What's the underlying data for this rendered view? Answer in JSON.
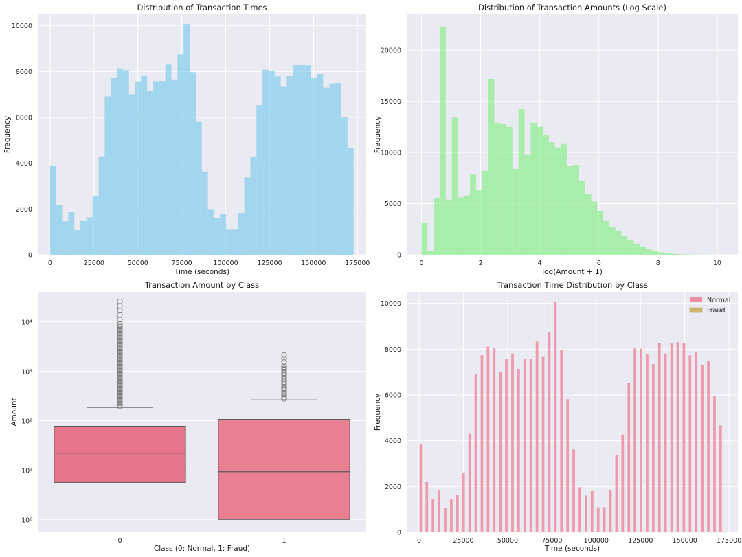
{
  "chart_data": [
    {
      "type": "bar",
      "title": "Distribution of Transaction Times",
      "xlabel": "Time (seconds)",
      "ylabel": "Frequency",
      "xlim": [
        -7000,
        180000
      ],
      "ylim": [
        0,
        10500
      ],
      "xticks": [
        0,
        25000,
        50000,
        75000,
        100000,
        125000,
        150000,
        175000
      ],
      "yticks": [
        0,
        2000,
        4000,
        6000,
        8000,
        10000
      ],
      "bin_start": 0,
      "bin_width": 3456,
      "color": "#87CEEB",
      "values": [
        3870,
        2190,
        1460,
        1860,
        1080,
        1470,
        1640,
        2580,
        4300,
        6920,
        7740,
        8140,
        8060,
        7010,
        7570,
        7840,
        7140,
        7580,
        7590,
        8330,
        7660,
        8750,
        10080,
        7970,
        5830,
        3640,
        1970,
        1600,
        1800,
        1100,
        1100,
        1830,
        3380,
        4280,
        6540,
        8080,
        8020,
        7790,
        7360,
        7830,
        8280,
        8300,
        8270,
        7740,
        7890,
        7300,
        7480,
        7500,
        6000,
        4670
      ]
    },
    {
      "type": "bar",
      "title": "Distribution of Transaction Amounts (Log Scale)",
      "xlabel": "log(Amount + 1)",
      "ylabel": "Frequency",
      "xlim": [
        -0.5,
        10.7
      ],
      "ylim": [
        0,
        23500
      ],
      "xticks": [
        0,
        2,
        4,
        6,
        8,
        10
      ],
      "yticks": [
        0,
        5000,
        10000,
        15000,
        20000
      ],
      "bin_start": 0,
      "bin_width": 0.205,
      "color": "#90EE90",
      "values": [
        3100,
        400,
        5500,
        22300,
        5400,
        13400,
        5600,
        5800,
        7900,
        6300,
        8200,
        17200,
        12900,
        12800,
        12500,
        8400,
        14300,
        9800,
        12900,
        12500,
        11700,
        11000,
        10500,
        10900,
        8700,
        8800,
        7200,
        5900,
        5200,
        4300,
        3300,
        2700,
        2300,
        1800,
        1400,
        1100,
        800,
        560,
        380,
        240,
        150,
        100,
        60,
        40,
        25,
        15,
        10,
        6,
        4,
        2
      ]
    },
    {
      "type": "box",
      "title": "Transaction Amount by Class",
      "xlabel": "Class (0: Normal, 1: Fraud)",
      "ylabel": "Amount",
      "yscale": "log",
      "ylim": [
        0.55,
        40000
      ],
      "categories": [
        "0",
        "1"
      ],
      "ytick_labels": [
        "10⁰",
        "10¹",
        "10²",
        "10³",
        "10⁴"
      ],
      "color": "#E8768A",
      "boxes": [
        {
          "lower_whisker": 0.55,
          "q1": 5.6,
          "median": 22,
          "q3": 77,
          "upper_whisker": 185,
          "outlier_max": 25700,
          "outlier_dense_max": 9000
        },
        {
          "lower_whisker": 0.55,
          "q1": 1.0,
          "median": 9.25,
          "q3": 106,
          "upper_whisker": 262,
          "outlier_max": 2126,
          "outlier_dense_max": 1300
        }
      ]
    },
    {
      "type": "bar",
      "title": "Transaction Time Distribution by Class",
      "xlabel": "Time (seconds)",
      "ylabel": "Frequency",
      "xlim": [
        -7000,
        180000
      ],
      "ylim": [
        0,
        10500
      ],
      "xticks": [
        0,
        25000,
        50000,
        75000,
        100000,
        125000,
        150000,
        175000
      ],
      "yticks": [
        0,
        2000,
        4000,
        6000,
        8000,
        10000
      ],
      "bin_start": 0,
      "bin_width": 3456,
      "legend": {
        "position": "top-right",
        "entries": [
          "Normal",
          "Fraud"
        ]
      },
      "series": [
        {
          "name": "Normal",
          "color": "#F08CA0",
          "values": [
            3870,
            2190,
            1460,
            1860,
            1080,
            1470,
            1640,
            2580,
            4300,
            6920,
            7740,
            8110,
            8060,
            7010,
            7570,
            7810,
            7140,
            7580,
            7590,
            8330,
            7660,
            8750,
            10060,
            7950,
            5810,
            3620,
            1970,
            1600,
            1800,
            1090,
            1100,
            1830,
            3370,
            4270,
            6540,
            8070,
            8020,
            7780,
            7350,
            8270,
            7810,
            8280,
            8300,
            8260,
            7730,
            7880,
            7290,
            7480,
            5970,
            4670
          ]
        },
        {
          "name": "Fraud",
          "color": "#D2B46E",
          "values": [
            10,
            14,
            20,
            12,
            18,
            14,
            8,
            10,
            12,
            14,
            12,
            10,
            8,
            10,
            12,
            8,
            10,
            14,
            10,
            8,
            6,
            10,
            8,
            10,
            12,
            14,
            10,
            12,
            18,
            10,
            8,
            10,
            12,
            10,
            8,
            10,
            12,
            10,
            8,
            10,
            8,
            10,
            12,
            10,
            8,
            10,
            8,
            10,
            8,
            6
          ]
        }
      ]
    }
  ]
}
